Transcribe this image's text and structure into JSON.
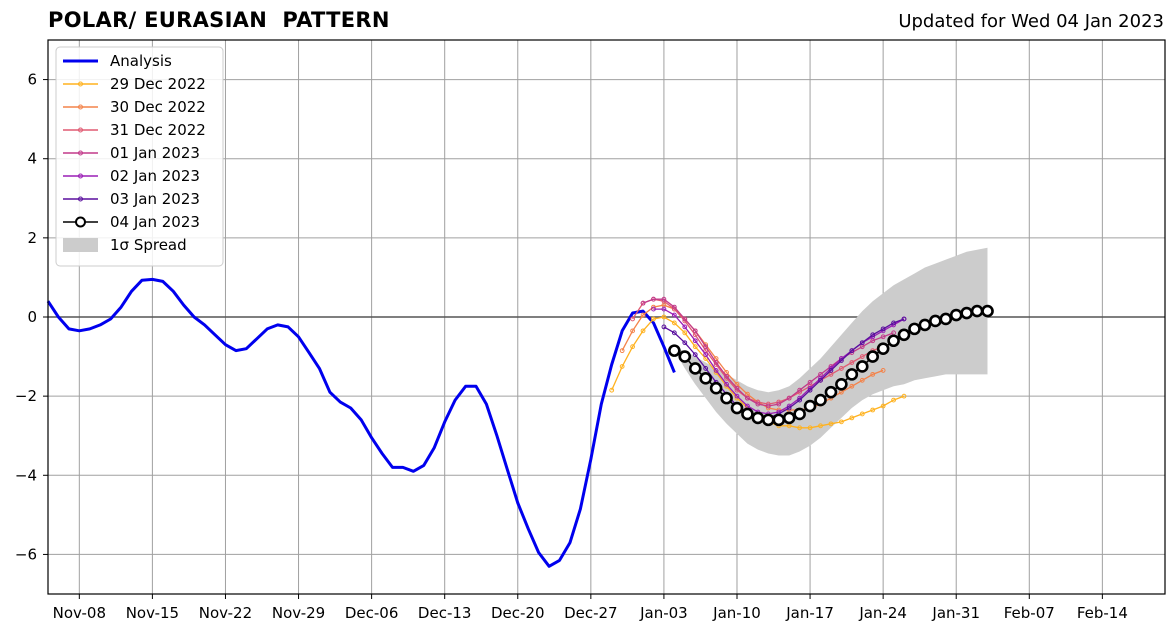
{
  "title": "POLAR/ EURASIAN  PATTERN",
  "subtitle": "Updated for Wed 04 Jan 2023",
  "chart_data": {
    "type": "line",
    "xlim": [
      "2022-11-05",
      "2023-02-20"
    ],
    "ylim": [
      -7,
      7
    ],
    "x_ticks": [
      "Nov-08",
      "Nov-15",
      "Nov-22",
      "Nov-29",
      "Dec-06",
      "Dec-13",
      "Dec-20",
      "Dec-27",
      "Jan-03",
      "Jan-10",
      "Jan-17",
      "Jan-24",
      "Jan-31",
      "Feb-07",
      "Feb-14"
    ],
    "y_ticks": [
      -6,
      -4,
      -2,
      0,
      2,
      4,
      6
    ],
    "grid": true,
    "zero_line": true,
    "legend_position": "upper-left",
    "analysis": {
      "name": "Analysis",
      "color": "#0000ee",
      "start_date": "2022-11-05",
      "values": [
        0.4,
        0.0,
        -0.3,
        -0.35,
        -0.3,
        -0.2,
        -0.05,
        0.25,
        0.65,
        0.93,
        0.95,
        0.9,
        0.65,
        0.3,
        0.0,
        -0.2,
        -0.45,
        -0.7,
        -0.85,
        -0.8,
        -0.55,
        -0.3,
        -0.2,
        -0.25,
        -0.5,
        -0.9,
        -1.3,
        -1.9,
        -2.15,
        -2.3,
        -2.6,
        -3.05,
        -3.45,
        -3.8,
        -3.8,
        -3.9,
        -3.75,
        -3.3,
        -2.65,
        -2.1,
        -1.75,
        -1.75,
        -2.2,
        -3.0,
        -3.85,
        -4.7,
        -5.35,
        -5.95,
        -6.3,
        -6.15,
        -5.7,
        -4.85,
        -3.6,
        -2.2,
        -1.2,
        -0.35,
        0.1,
        0.15,
        -0.15,
        -0.75,
        -1.4
      ]
    },
    "forecasts": [
      {
        "name": "29 Dec 2022",
        "color": "#ffb21f",
        "start_date": "2022-12-29",
        "values": [
          -1.85,
          -1.25,
          -0.75,
          -0.35,
          -0.05,
          0.0,
          -0.15,
          -0.4,
          -0.75,
          -1.05,
          -1.4,
          -1.75,
          -2.05,
          -2.3,
          -2.55,
          -2.65,
          -2.75,
          -2.75,
          -2.8,
          -2.8,
          -2.75,
          -2.7,
          -2.65,
          -2.55,
          -2.45,
          -2.35,
          -2.25,
          -2.1,
          -2.0
        ]
      },
      {
        "name": "30 Dec 2022",
        "color": "#f4834a",
        "start_date": "2022-12-30",
        "values": [
          -0.85,
          -0.35,
          0.05,
          0.25,
          0.3,
          0.2,
          -0.05,
          -0.35,
          -0.7,
          -1.05,
          -1.4,
          -1.7,
          -1.95,
          -2.15,
          -2.3,
          -2.35,
          -2.35,
          -2.35,
          -2.3,
          -2.2,
          -2.05,
          -1.9,
          -1.75,
          -1.6,
          -1.45,
          -1.35
        ]
      },
      {
        "name": "31 Dec 2022",
        "color": "#e05a72",
        "start_date": "2022-12-31",
        "values": [
          -0.05,
          0.35,
          0.45,
          0.4,
          0.2,
          -0.1,
          -0.45,
          -0.85,
          -1.2,
          -1.55,
          -1.85,
          -2.05,
          -2.15,
          -2.2,
          -2.15,
          -2.05,
          -1.9,
          -1.75,
          -1.6,
          -1.45,
          -1.3,
          -1.15,
          -1.0,
          -0.85,
          -0.75
        ]
      },
      {
        "name": "01 Jan 2023",
        "color": "#c23a8a",
        "start_date": "2023-01-01",
        "values": [
          0.35,
          0.45,
          0.45,
          0.25,
          -0.05,
          -0.35,
          -0.75,
          -1.15,
          -1.5,
          -1.8,
          -2.05,
          -2.2,
          -2.25,
          -2.2,
          -2.05,
          -1.85,
          -1.65,
          -1.45,
          -1.25,
          -1.05,
          -0.9,
          -0.75,
          -0.6,
          -0.5,
          -0.4
        ]
      },
      {
        "name": "02 Jan 2023",
        "color": "#9a1eb5",
        "start_date": "2023-01-02",
        "values": [
          0.2,
          0.2,
          0.05,
          -0.25,
          -0.6,
          -0.95,
          -1.35,
          -1.7,
          -2.0,
          -2.25,
          -2.4,
          -2.45,
          -2.4,
          -2.25,
          -2.05,
          -1.8,
          -1.55,
          -1.3,
          -1.05,
          -0.85,
          -0.65,
          -0.5,
          -0.35,
          -0.2,
          -0.05
        ]
      },
      {
        "name": "03 Jan 2023",
        "color": "#5a0f9e",
        "start_date": "2023-01-03",
        "values": [
          -0.25,
          -0.4,
          -0.65,
          -0.95,
          -1.3,
          -1.65,
          -1.95,
          -2.25,
          -2.45,
          -2.55,
          -2.55,
          -2.45,
          -2.3,
          -2.1,
          -1.85,
          -1.6,
          -1.35,
          -1.1,
          -0.85,
          -0.65,
          -0.45,
          -0.3,
          -0.15,
          -0.05
        ]
      },
      {
        "name": "04 Jan 2023",
        "color": "#000000",
        "start_date": "2023-01-04",
        "values": [
          -0.85,
          -1.0,
          -1.3,
          -1.55,
          -1.8,
          -2.05,
          -2.3,
          -2.45,
          -2.55,
          -2.6,
          -2.6,
          -2.55,
          -2.45,
          -2.25,
          -2.1,
          -1.9,
          -1.7,
          -1.45,
          -1.25,
          -1.0,
          -0.8,
          -0.6,
          -0.45,
          -0.3,
          -0.2,
          -0.1,
          -0.05,
          0.05,
          0.1,
          0.15,
          0.15
        ]
      }
    ],
    "spread": {
      "name": "1σ Spread",
      "color": "#cccccc",
      "start_date": "2023-01-04",
      "upper": [
        -0.8,
        -0.85,
        -1.0,
        -1.15,
        -1.3,
        -1.45,
        -1.6,
        -1.75,
        -1.85,
        -1.9,
        -1.85,
        -1.75,
        -1.55,
        -1.3,
        -1.05,
        -0.75,
        -0.45,
        -0.15,
        0.15,
        0.4,
        0.6,
        0.8,
        0.95,
        1.1,
        1.25,
        1.35,
        1.45,
        1.55,
        1.65,
        1.7,
        1.75
      ],
      "lower": [
        -0.85,
        -1.3,
        -1.7,
        -2.05,
        -2.4,
        -2.7,
        -2.95,
        -3.2,
        -3.35,
        -3.45,
        -3.5,
        -3.5,
        -3.4,
        -3.25,
        -3.05,
        -2.8,
        -2.55,
        -2.3,
        -2.1,
        -1.95,
        -1.85,
        -1.75,
        -1.7,
        -1.6,
        -1.55,
        -1.5,
        -1.45,
        -1.45,
        -1.45,
        -1.45,
        -1.45
      ]
    }
  }
}
